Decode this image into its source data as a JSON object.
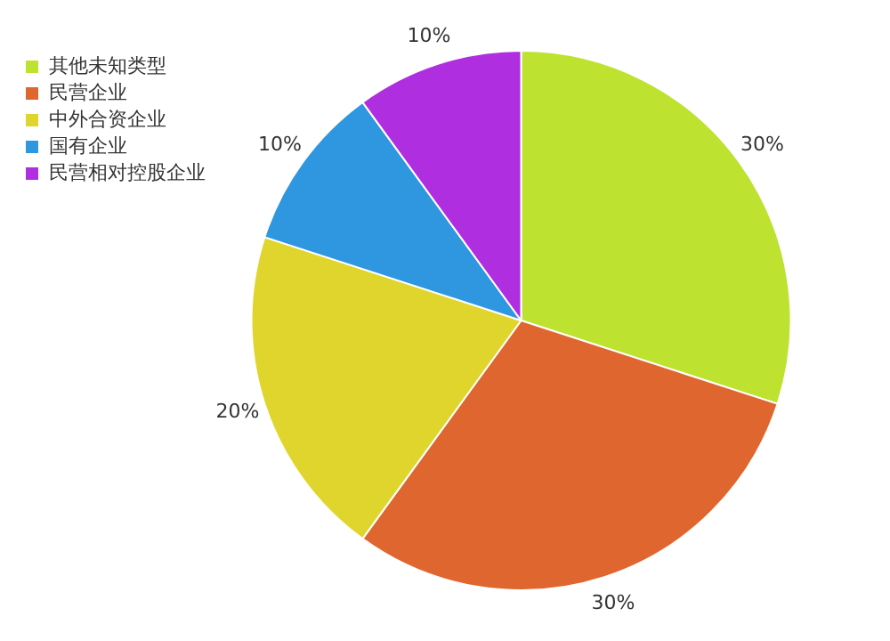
{
  "chart_data": {
    "type": "pie",
    "categories": [
      "其他未知类型",
      "民营企业",
      "中外合资企业",
      "国有企业",
      "民营相对控股企业"
    ],
    "values": [
      30,
      30,
      20,
      10,
      10
    ],
    "value_labels": [
      "30%",
      "30%",
      "20%",
      "10%",
      "10%"
    ],
    "colors": [
      "#bde22f",
      "#e0662f",
      "#e0d52d",
      "#2f97e0",
      "#af2fe0"
    ],
    "legend": "top left"
  }
}
